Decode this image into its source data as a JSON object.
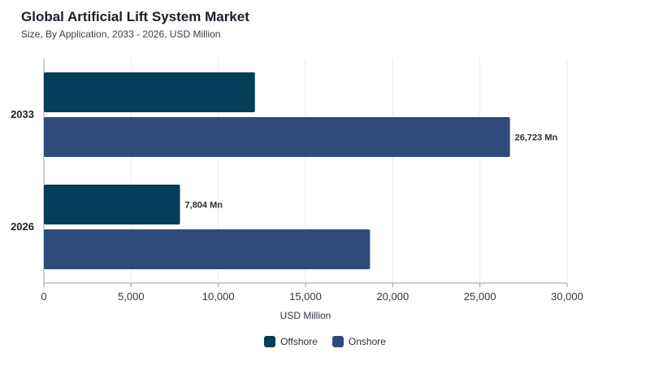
{
  "chart_data": {
    "type": "bar",
    "orientation": "horizontal",
    "title": "Global Artificial Lift System Market",
    "subtitle": "Size, By Application, 2033 - 2026, USD Million",
    "categories": [
      "2033",
      "2026"
    ],
    "series": [
      {
        "name": "Offshore",
        "values": [
          12100,
          7804
        ],
        "color": "#033d5a"
      },
      {
        "name": "Onshore",
        "values": [
          26723,
          18700
        ],
        "color": "#2f4b7c"
      }
    ],
    "data_labels": [
      {
        "series": "Onshore",
        "category": "2033",
        "text": "26,723 Mn"
      },
      {
        "series": "Offshore",
        "category": "2026",
        "text": "7,804 Mn"
      }
    ],
    "xlabel": "USD Million",
    "xlim": [
      0,
      30000
    ],
    "xticks": [
      "0",
      "5,000",
      "10,000",
      "15,000",
      "20,000",
      "25,000",
      "30,000"
    ],
    "grid": true,
    "legend_position": "bottom-center"
  }
}
